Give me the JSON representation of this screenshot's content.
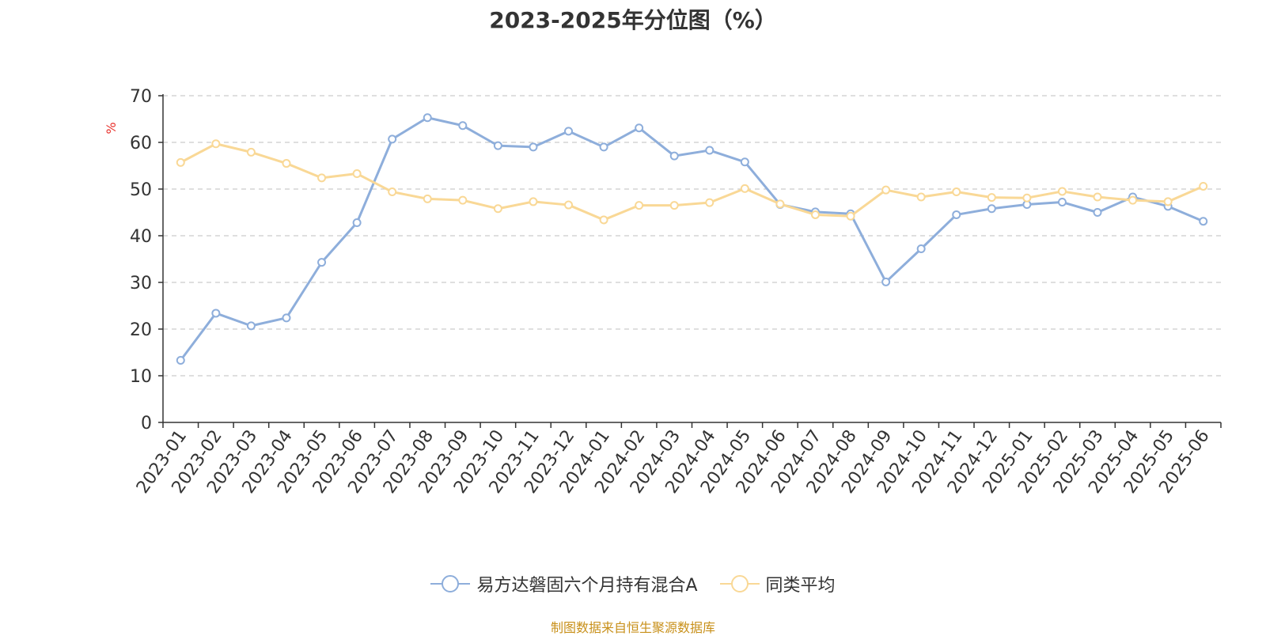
{
  "chart_data": {
    "type": "line",
    "title": "2023-2025年分位图（%）",
    "ylabel": "%",
    "ylim": [
      0,
      70
    ],
    "yticks": [
      0,
      10,
      20,
      30,
      40,
      50,
      60,
      70
    ],
    "grid": true,
    "legend_position": "bottom",
    "categories": [
      "2023-01",
      "2023-02",
      "2023-03",
      "2023-04",
      "2023-05",
      "2023-06",
      "2023-07",
      "2023-08",
      "2023-09",
      "2023-10",
      "2023-11",
      "2023-12",
      "2024-01",
      "2024-02",
      "2024-03",
      "2024-04",
      "2024-05",
      "2024-06",
      "2024-07",
      "2024-08",
      "2024-09",
      "2024-10",
      "2024-11",
      "2024-12",
      "2025-01",
      "2025-02",
      "2025-03",
      "2025-04",
      "2025-05",
      "2025-06"
    ],
    "series": [
      {
        "name": "易方达磐固六个月持有混合A",
        "color": "#8eaedb",
        "values": [
          13.3,
          23.4,
          20.7,
          22.4,
          34.3,
          42.8,
          60.7,
          65.3,
          63.6,
          59.3,
          59.0,
          62.4,
          59.0,
          63.1,
          57.1,
          58.3,
          55.8,
          46.7,
          45.1,
          44.7,
          30.1,
          37.2,
          44.5,
          45.8,
          46.7,
          47.2,
          45.0,
          48.3,
          46.3,
          43.1
        ]
      },
      {
        "name": "同类平均",
        "color": "#f9d896",
        "values": [
          55.7,
          59.7,
          57.9,
          55.5,
          52.4,
          53.3,
          49.4,
          47.9,
          47.6,
          45.8,
          47.3,
          46.6,
          43.4,
          46.5,
          46.5,
          47.1,
          50.1,
          46.8,
          44.5,
          44.2,
          49.8,
          48.3,
          49.4,
          48.2,
          48.1,
          49.5,
          48.3,
          47.6,
          47.3,
          50.6
        ]
      }
    ]
  },
  "source_note": "制图数据来自恒生聚源数据库"
}
